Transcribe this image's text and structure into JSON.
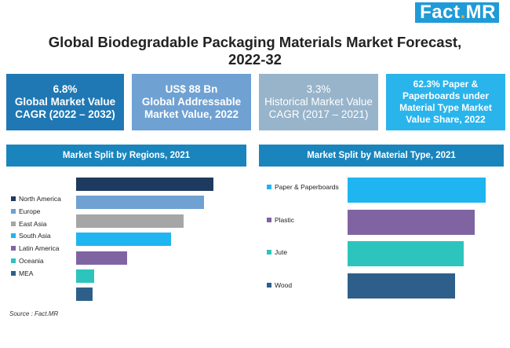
{
  "logo": {
    "text_main": "Fact",
    "text_dot": ".",
    "text_end": "MR"
  },
  "title": "Global Biodegradable Packaging Materials Market Forecast, 2022-32",
  "kpis": [
    {
      "value": "6.8%",
      "label": "Global Market Value CAGR (2022 – 2032)"
    },
    {
      "value": "US$ 88 Bn",
      "label": "Global Addressable Market Value, 2022"
    },
    {
      "value": "3.3%",
      "label": "Historical Market Value CAGR (2017 – 2021)"
    },
    {
      "value": "62.3% Paper & Paperboards under Material Type Market Value Share, 2022",
      "label": ""
    }
  ],
  "source": "Source : Fact.MR",
  "chart_data": [
    {
      "type": "bar",
      "orientation": "horizontal",
      "title": "Market Split by Regions, 2021",
      "categories": [
        "North America",
        "Europe",
        "East Asia",
        "South Asia",
        "Latin America",
        "Oceania",
        "MEA"
      ],
      "values": [
        100,
        93,
        78,
        69,
        37,
        13,
        12
      ],
      "colors": [
        "#1f3a5f",
        "#6fa1d3",
        "#a6a6a6",
        "#1fb5f0",
        "#8064a2",
        "#2cc4bd",
        "#2e5f8a"
      ],
      "value_axis": "none (relative lengths)",
      "legend_position": "left"
    },
    {
      "type": "bar",
      "orientation": "horizontal",
      "title": "Market Split by Material Type, 2021",
      "categories": [
        "Paper & Paperboards",
        "Plastic",
        "Jute",
        "Wood"
      ],
      "values": [
        100,
        92,
        84,
        78
      ],
      "colors": [
        "#1fb5f0",
        "#8064a2",
        "#2cc4bd",
        "#2e5f8a"
      ],
      "value_axis": "none (relative lengths)",
      "legend_position": "left"
    }
  ]
}
